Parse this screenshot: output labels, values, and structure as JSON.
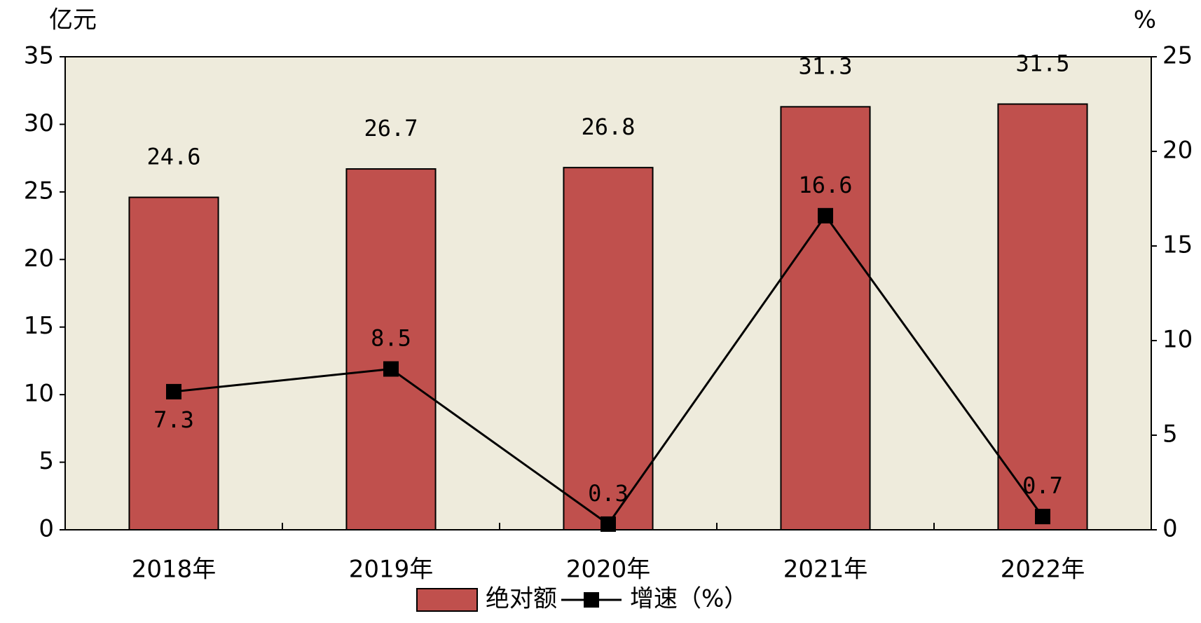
{
  "chart_data": {
    "type": "bar-line",
    "y_label": "亿元",
    "y2_label": "%",
    "categories": [
      "2018年",
      "2019年",
      "2020年",
      "2021年",
      "2022年"
    ],
    "series": [
      {
        "name": "绝对额",
        "type": "bar",
        "color": "#c0504d",
        "values": [
          24.6,
          26.7,
          26.8,
          31.3,
          31.5
        ]
      },
      {
        "name": "增速（%）",
        "type": "line",
        "axis": "y2",
        "color": "#000000",
        "values": [
          7.3,
          8.5,
          0.3,
          16.6,
          0.7
        ]
      }
    ],
    "ylim": [
      0,
      35
    ],
    "yticks": [
      0,
      5,
      10,
      15,
      20,
      25,
      30,
      35
    ],
    "y2lim": [
      0,
      25
    ],
    "y2ticks": [
      0,
      5,
      10,
      15,
      20,
      25
    ],
    "plot_background": "#eeebdc",
    "legend": "bottom"
  }
}
